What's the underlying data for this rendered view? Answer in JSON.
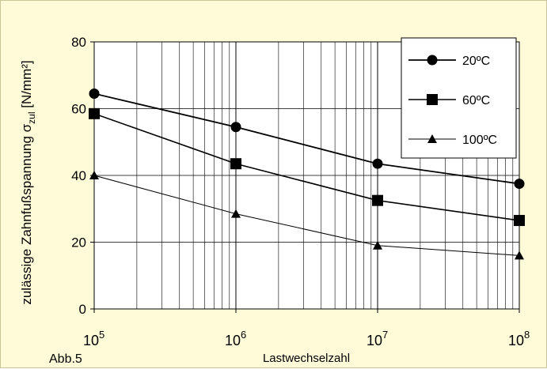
{
  "chart_data": {
    "type": "line",
    "xscale": "log",
    "xlim": [
      100000,
      100000000
    ],
    "ylim": [
      0,
      80
    ],
    "xlabel": "Lastwechselzahl",
    "ylabel_main": "zulässige Zahnfußspannung σ",
    "ylabel_sub": "zul",
    "ylabel_unit": " [N/mm²]",
    "xticks": [
      {
        "value": 100000,
        "base": "10",
        "exp": "5"
      },
      {
        "value": 1000000,
        "base": "10",
        "exp": "6"
      },
      {
        "value": 10000000,
        "base": "10",
        "exp": "7"
      },
      {
        "value": 100000000,
        "base": "10",
        "exp": "8"
      }
    ],
    "yticks": [
      "0",
      "20",
      "40",
      "60",
      "80"
    ],
    "grid": true,
    "legend_position": "top-right",
    "series": [
      {
        "name": "20ºC",
        "marker": "circle",
        "x": [
          100000,
          1000000,
          10000000,
          100000000
        ],
        "y": [
          64.5,
          54.5,
          43.5,
          37.5
        ]
      },
      {
        "name": "60ºC",
        "marker": "square",
        "x": [
          100000,
          1000000,
          10000000,
          100000000
        ],
        "y": [
          58.5,
          43.5,
          32.5,
          26.5
        ]
      },
      {
        "name": "100ºC",
        "marker": "triangle",
        "x": [
          100000,
          1000000,
          10000000,
          100000000
        ],
        "y": [
          40.0,
          28.5,
          19.0,
          16.0
        ]
      }
    ]
  },
  "caption": "Abb.5"
}
